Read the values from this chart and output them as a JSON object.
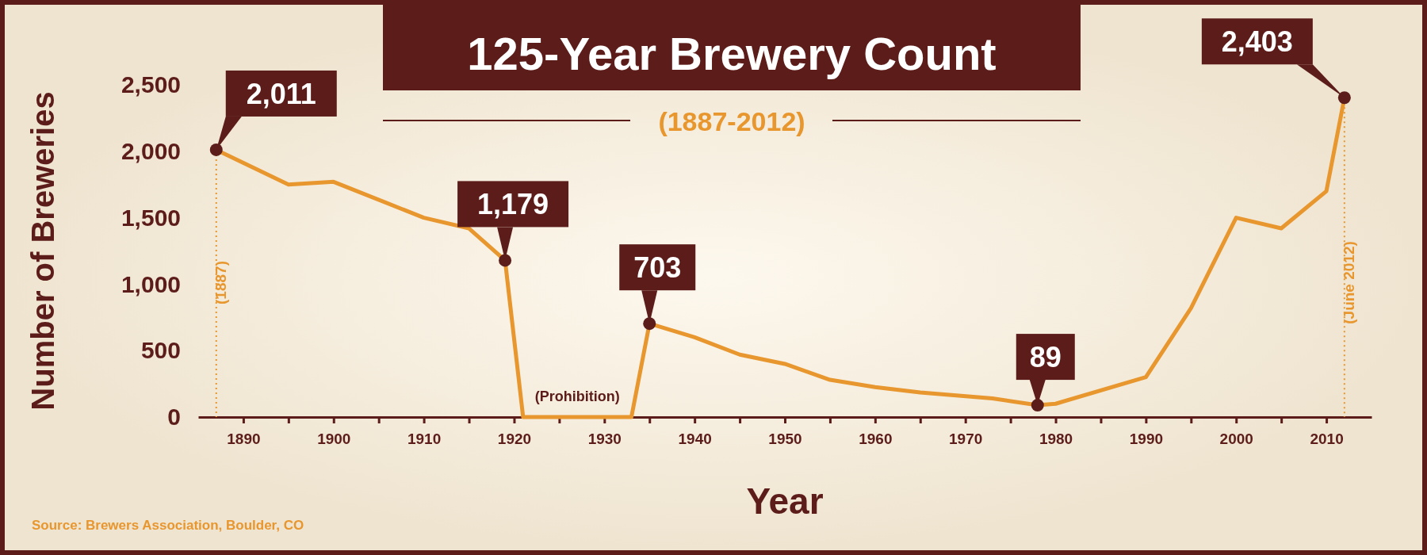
{
  "chart_data": {
    "type": "line",
    "title": "125-Year Brewery Count",
    "subtitle": "(1887-2012)",
    "xlabel": "Year",
    "ylabel": "Number of Breweries",
    "x": [
      1887,
      1895,
      1900,
      1910,
      1915,
      1919,
      1921,
      1933,
      1935,
      1940,
      1945,
      1950,
      1955,
      1960,
      1965,
      1973,
      1978,
      1980,
      1990,
      1995,
      2000,
      2005,
      2010,
      2012
    ],
    "series": [
      {
        "color": "#e8962e",
        "values": [
          2011,
          1750,
          1770,
          1500,
          1420,
          1179,
          0,
          0,
          703,
          600,
          470,
          400,
          280,
          225,
          185,
          140,
          89,
          100,
          300,
          820,
          1500,
          1420,
          1700,
          2403
        ],
        "value_labels": [
          "2,011",
          null,
          null,
          null,
          null,
          "1,179",
          null,
          null,
          "703",
          null,
          null,
          null,
          null,
          null,
          null,
          null,
          "89",
          null,
          null,
          null,
          null,
          null,
          null,
          "2,403"
        ]
      }
    ],
    "xlim": [
      1885,
      2015
    ],
    "xticks": [
      1890,
      {
        "value": 1895,
        "label": null
      },
      1900,
      {
        "value": 1905,
        "label": null
      },
      1910,
      {
        "value": 1915,
        "label": null
      },
      1920,
      {
        "value": 1925,
        "label": null
      },
      1930,
      {
        "value": 1935,
        "label": null
      },
      1940,
      {
        "value": 1945,
        "label": null
      },
      1950,
      {
        "value": 1955,
        "label": null
      },
      1960,
      {
        "value": 1965,
        "label": null
      },
      1970,
      {
        "value": 1975,
        "label": null
      },
      1980,
      {
        "value": 1985,
        "label": null
      },
      1990,
      {
        "value": 1995,
        "label": null
      },
      2000,
      {
        "value": 2005,
        "label": null
      },
      2010
    ],
    "ylim": [
      0,
      2500
    ],
    "yticks": [
      {
        "value": 0,
        "label": "0"
      },
      {
        "value": 500,
        "label": "500"
      },
      {
        "value": 1000,
        "label": "1,000"
      },
      {
        "value": 1500,
        "label": "1,500"
      },
      {
        "value": 2000,
        "label": "2,000"
      },
      {
        "value": 2500,
        "label": "2,500"
      }
    ],
    "ref_lines": [
      {
        "axis": "x",
        "value": 1887,
        "label": "(1887)",
        "color": "#e8962e",
        "line_style": "dotted"
      },
      {
        "axis": "x",
        "value": 2012,
        "label": "(June 2012)",
        "color": "#e8962e",
        "line_style": "dotted"
      }
    ],
    "annotations": [
      {
        "text": "(Prohibition)",
        "x": 1927,
        "y": 0
      },
      "Source: Brewers Association, Boulder, CO"
    ],
    "grid": false
  }
}
